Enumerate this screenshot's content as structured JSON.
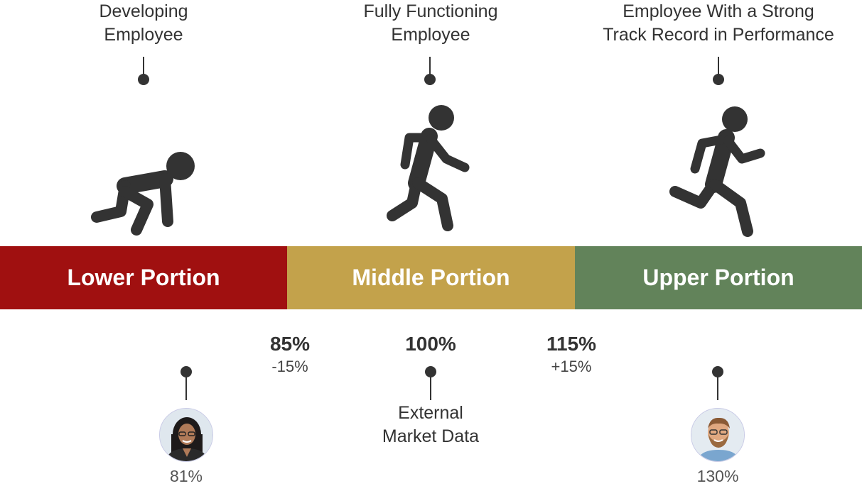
{
  "stages": [
    {
      "title_lines": [
        "Developing",
        "Employee"
      ],
      "figure_icon": "crouching-figure-icon"
    },
    {
      "title_lines": [
        "Fully Functioning",
        "Employee"
      ],
      "figure_icon": "walking-figure-icon"
    },
    {
      "title_lines": [
        "Employee With a Strong",
        "Track Record in Performance"
      ],
      "figure_icon": "running-figure-icon"
    }
  ],
  "bands": [
    {
      "label": "Lower Portion",
      "color": "#a01010"
    },
    {
      "label": "Middle Portion",
      "color": "#c3a24b"
    },
    {
      "label": "Upper Portion",
      "color": "#62835a"
    }
  ],
  "markers": [
    {
      "value": "85%",
      "delta": "-15%"
    },
    {
      "value": "100%"
    },
    {
      "value": "115%",
      "delta": "+15%"
    }
  ],
  "market_label_lines": [
    "External",
    "Market Data"
  ],
  "employees": [
    {
      "pct": "81%",
      "avatar_icon": "woman-avatar-icon"
    },
    {
      "pct": "130%",
      "avatar_icon": "man-avatar-icon"
    }
  ]
}
